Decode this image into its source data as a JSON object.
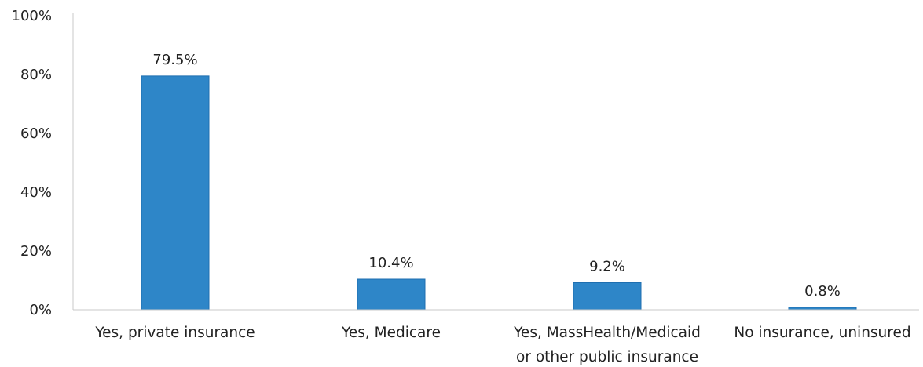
{
  "chart_data": {
    "type": "bar",
    "categories": [
      [
        "Yes, private insurance"
      ],
      [
        "Yes, Medicare"
      ],
      [
        "Yes, MassHealth/Medicaid",
        "or other public insurance"
      ],
      [
        "No insurance, uninsured"
      ]
    ],
    "values": [
      79.5,
      10.4,
      9.2,
      0.8
    ],
    "data_labels": [
      "79.5%",
      "10.4%",
      "9.2%",
      "0.8%"
    ],
    "ylim": [
      0,
      100
    ],
    "yticks": [
      0,
      20,
      40,
      60,
      80,
      100
    ],
    "ytick_labels": [
      "0%",
      "20%",
      "40%",
      "60%",
      "80%",
      "100%"
    ],
    "grid": false,
    "legend": "none",
    "colors": {
      "bar": "#2e86c8",
      "bar_edge": "#1f6fb0",
      "axis": "#c8c8c8"
    }
  }
}
